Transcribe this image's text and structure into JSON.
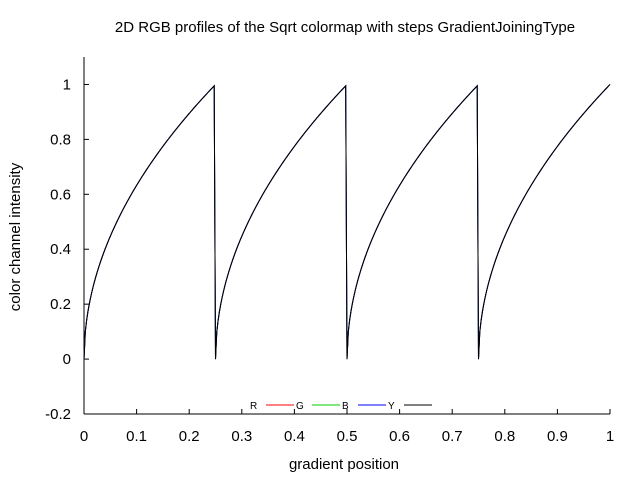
{
  "chart_data": {
    "type": "line",
    "title": "2D RGB profiles of the Sqrt colormap with steps GradientJoiningType",
    "xlabel": "gradient position",
    "ylabel": "color channel intensity",
    "xlim": [
      0,
      1
    ],
    "ylim": [
      -0.2,
      1.1
    ],
    "xticks": [
      "0",
      "0.1",
      "0.2",
      "0.3",
      "0.4",
      "0.5",
      "0.6",
      "0.7",
      "0.8",
      "0.9",
      "1"
    ],
    "yticks": [
      "-0.2",
      "0",
      "0.2",
      "0.4",
      "0.6",
      "0.8",
      "1"
    ],
    "grid": false,
    "legend_position": "bottom-center",
    "steps": 4,
    "function": "sqrt",
    "series": [
      {
        "name": "R",
        "color": "#ff0000",
        "sample_x": [
          0,
          0.0625,
          0.125,
          0.1875,
          0.25,
          0.3125,
          0.375,
          0.4375,
          0.5,
          0.5625,
          0.625,
          0.6875,
          0.75,
          0.8125,
          0.875,
          0.9375,
          1.0
        ],
        "sample_y": [
          0,
          0.5,
          0.707,
          0.866,
          1,
          0.5,
          0.707,
          0.866,
          1,
          0.5,
          0.707,
          0.866,
          1,
          0.5,
          0.707,
          0.866,
          1
        ]
      },
      {
        "name": "G",
        "color": "#00cc00",
        "sample_x": [
          0,
          0.0625,
          0.125,
          0.1875,
          0.25,
          0.3125,
          0.375,
          0.4375,
          0.5,
          0.5625,
          0.625,
          0.6875,
          0.75,
          0.8125,
          0.875,
          0.9375,
          1.0
        ],
        "sample_y": [
          0,
          0.5,
          0.707,
          0.866,
          1,
          0.5,
          0.707,
          0.866,
          1,
          0.5,
          0.707,
          0.866,
          1,
          0.5,
          0.707,
          0.866,
          1
        ]
      },
      {
        "name": "B",
        "color": "#0000ff",
        "sample_x": [
          0,
          0.0625,
          0.125,
          0.1875,
          0.25,
          0.3125,
          0.375,
          0.4375,
          0.5,
          0.5625,
          0.625,
          0.6875,
          0.75,
          0.8125,
          0.875,
          0.9375,
          1.0
        ],
        "sample_y": [
          0,
          0.5,
          0.707,
          0.866,
          1,
          0.5,
          0.707,
          0.866,
          1,
          0.5,
          0.707,
          0.866,
          1,
          0.5,
          0.707,
          0.866,
          1
        ]
      },
      {
        "name": "Y",
        "color": "#000000",
        "sample_x": [
          0,
          0.0625,
          0.125,
          0.1875,
          0.25,
          0.3125,
          0.375,
          0.4375,
          0.5,
          0.5625,
          0.625,
          0.6875,
          0.75,
          0.8125,
          0.875,
          0.9375,
          1.0
        ],
        "sample_y": [
          0,
          0.5,
          0.707,
          0.866,
          1,
          0.5,
          0.707,
          0.866,
          1,
          0.5,
          0.707,
          0.866,
          1,
          0.5,
          0.707,
          0.866,
          1
        ]
      }
    ]
  }
}
